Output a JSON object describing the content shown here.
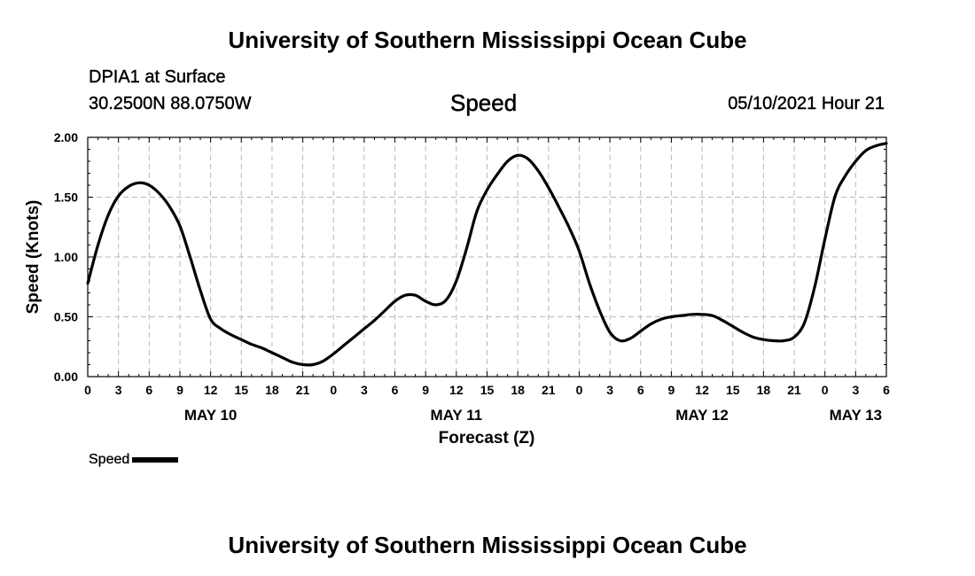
{
  "header": {
    "title": "University of Southern Mississippi Ocean Cube",
    "station": "DPIA1 at Surface",
    "coords": "30.2500N  88.0750W",
    "chart_title": "Speed",
    "datetime": "05/10/2021 Hour 21"
  },
  "footer": {
    "title": "University of Southern Mississippi Ocean Cube"
  },
  "legend": {
    "label": "Speed"
  },
  "chart_data": {
    "type": "line",
    "title": "Speed",
    "xlabel": "Forecast (Z)",
    "ylabel": "Speed (Knots)",
    "x_unit": "hours since 2021-05-10 00Z",
    "xlim": [
      0,
      78
    ],
    "ylim": [
      0,
      2
    ],
    "grid": true,
    "yticks": [
      0.0,
      0.5,
      1.0,
      1.5,
      2.0
    ],
    "ytick_labels": [
      "0.00",
      "0.50",
      "1.00",
      "1.50",
      "2.00"
    ],
    "xticks": [
      0,
      3,
      6,
      9,
      12,
      15,
      18,
      21,
      24,
      27,
      30,
      33,
      36,
      39,
      42,
      45,
      48,
      51,
      54,
      57,
      60,
      63,
      66,
      69,
      72,
      75,
      78
    ],
    "xtick_labels": [
      "0",
      "3",
      "6",
      "9",
      "12",
      "15",
      "18",
      "21",
      "0",
      "3",
      "6",
      "9",
      "12",
      "15",
      "18",
      "21",
      "0",
      "3",
      "6",
      "9",
      "12",
      "15",
      "18",
      "21",
      "0",
      "3",
      "6"
    ],
    "date_labels": [
      {
        "label": "MAY 10",
        "hour": 12
      },
      {
        "label": "MAY 11",
        "hour": 36
      },
      {
        "label": "MAY 12",
        "hour": 60
      },
      {
        "label": "MAY 13",
        "hour": 75
      }
    ],
    "legend_position": "bottom-left",
    "series": [
      {
        "name": "Speed",
        "color": "#000000",
        "x": [
          0,
          1,
          2,
          3,
          4,
          5,
          6,
          7,
          8,
          9,
          10,
          11,
          12,
          13,
          14,
          15,
          16,
          17,
          18,
          19,
          20,
          21,
          22,
          23,
          24,
          25,
          26,
          27,
          28,
          29,
          30,
          31,
          32,
          33,
          34,
          35,
          36,
          37,
          38,
          39,
          40,
          41,
          42,
          43,
          44,
          45,
          46,
          47,
          48,
          49,
          50,
          51,
          52,
          53,
          54,
          55,
          56,
          57,
          58,
          59,
          60,
          61,
          62,
          63,
          64,
          65,
          66,
          67,
          68,
          69,
          70,
          71,
          72,
          73,
          74,
          75,
          76,
          77,
          78
        ],
        "values": [
          0.78,
          1.1,
          1.35,
          1.51,
          1.59,
          1.62,
          1.6,
          1.53,
          1.42,
          1.26,
          1.0,
          0.72,
          0.48,
          0.4,
          0.35,
          0.31,
          0.27,
          0.24,
          0.2,
          0.16,
          0.12,
          0.1,
          0.1,
          0.13,
          0.19,
          0.26,
          0.33,
          0.4,
          0.47,
          0.55,
          0.63,
          0.68,
          0.68,
          0.63,
          0.6,
          0.64,
          0.8,
          1.07,
          1.38,
          1.56,
          1.69,
          1.8,
          1.85,
          1.82,
          1.72,
          1.58,
          1.42,
          1.25,
          1.05,
          0.78,
          0.55,
          0.37,
          0.3,
          0.32,
          0.38,
          0.44,
          0.48,
          0.5,
          0.51,
          0.52,
          0.52,
          0.51,
          0.47,
          0.42,
          0.37,
          0.33,
          0.31,
          0.3,
          0.3,
          0.33,
          0.45,
          0.75,
          1.15,
          1.51,
          1.68,
          1.8,
          1.89,
          1.93,
          1.95
        ]
      }
    ]
  }
}
